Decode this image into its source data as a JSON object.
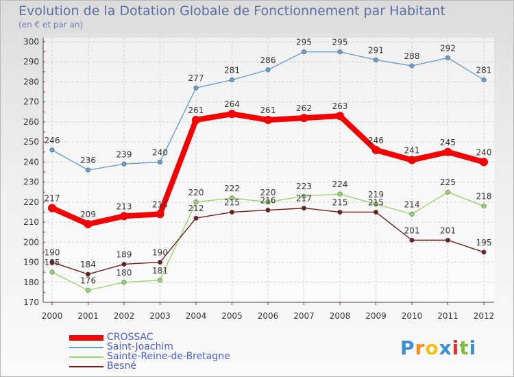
{
  "chart_data": {
    "type": "line",
    "title": "Evolution de la Dotation Globale de Fonctionnement par Habitant",
    "subtitle": "(en € et par an)",
    "categories": [
      "2000",
      "2001",
      "2002",
      "2003",
      "2004",
      "2005",
      "2006",
      "2007",
      "2008",
      "2009",
      "2010",
      "2011",
      "2012"
    ],
    "ylim": [
      170,
      300
    ],
    "yticks": [
      170,
      180,
      190,
      200,
      210,
      220,
      230,
      240,
      250,
      260,
      270,
      280,
      290,
      300
    ],
    "series": [
      {
        "name": "Saint-Joachim",
        "color": "#6a9fd0",
        "values": [
          246,
          236,
          239,
          240,
          277,
          281,
          286,
          295,
          295,
          291,
          288,
          292,
          281
        ]
      },
      {
        "name": "Sainte-Reine-de-Bretagne",
        "color": "#98d76b",
        "values": [
          185,
          176,
          180,
          181,
          220,
          222,
          220,
          223,
          224,
          219,
          214,
          225,
          218
        ]
      },
      {
        "name": "Besné",
        "color": "#6e1c1c",
        "values": [
          190,
          184,
          189,
          190,
          212,
          215,
          216,
          217,
          215,
          215,
          201,
          201,
          195
        ]
      },
      {
        "name": "CROSSAC",
        "color": "#f50000",
        "values": [
          217,
          209,
          213,
          214,
          261,
          264,
          261,
          262,
          263,
          246,
          241,
          245,
          240
        ]
      }
    ],
    "legend_order": [
      "CROSSAC",
      "Saint-Joachim",
      "Sainte-Reine-de-Bretagne",
      "Besné"
    ]
  },
  "logo": {
    "text": "Proxiti"
  }
}
